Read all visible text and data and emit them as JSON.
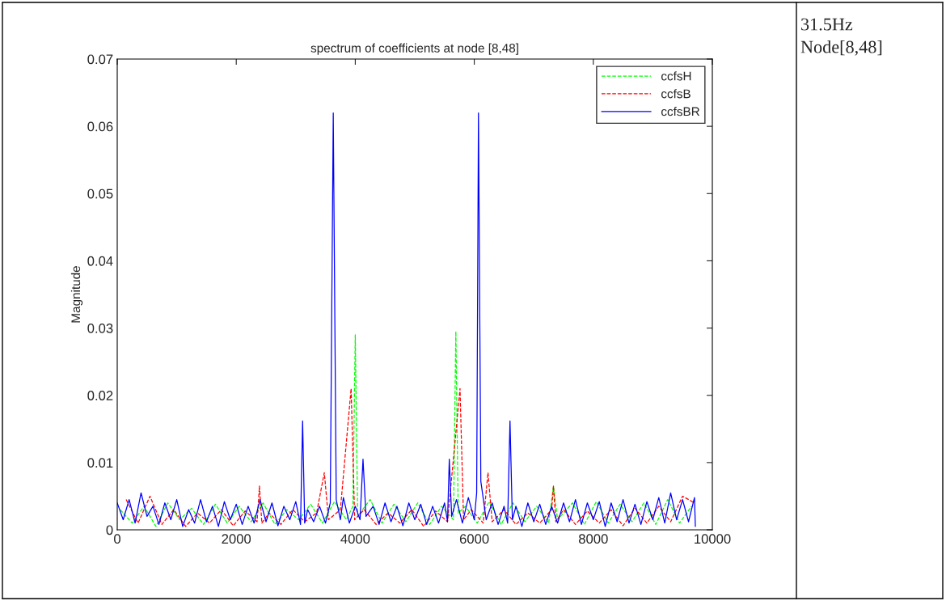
{
  "chart_data": {
    "type": "line",
    "title": "spectrum of coefficients at node [8,48]",
    "ylabel": "Magnitude",
    "xlim": [
      0,
      10000
    ],
    "xticks": [
      0,
      2000,
      4000,
      6000,
      8000,
      10000
    ],
    "ylim": [
      0,
      0.07
    ],
    "yticks": [
      0,
      0.01,
      0.02,
      0.03,
      0.04,
      0.05,
      0.06,
      0.07
    ],
    "grid": false,
    "legend": "top right",
    "annotations": [
      "31.5Hz",
      "Node[8,48]"
    ],
    "series": [
      {
        "name": "ccfsH",
        "color": "#00ff00",
        "line_style": "dashed",
        "x": [
          50,
          250,
          450,
          650,
          850,
          1050,
          1250,
          1450,
          1650,
          1850,
          2050,
          2250,
          2450,
          2650,
          2850,
          3050,
          3250,
          3450,
          3650,
          3850,
          3960,
          4000,
          4040,
          4250,
          4450,
          4650,
          4850,
          5050,
          5250,
          5450,
          5650,
          5690,
          5730,
          5850,
          6050,
          6250,
          6450,
          6650,
          6850,
          7050,
          7250,
          7330,
          7400,
          7650,
          7850,
          8050,
          8250,
          8450,
          8650,
          8850,
          9050,
          9250,
          9450,
          9650
        ],
        "values": [
          0.003,
          0.001,
          0.0035,
          0.0005,
          0.004,
          0.0015,
          0.0032,
          0.0008,
          0.0038,
          0.001,
          0.0035,
          0.0012,
          0.004,
          0.0008,
          0.003,
          0.0015,
          0.0038,
          0.001,
          0.0042,
          0.0015,
          0.0035,
          0.029,
          0.002,
          0.0045,
          0.001,
          0.0038,
          0.0012,
          0.004,
          0.0008,
          0.0035,
          0.0015,
          0.0295,
          0.0025,
          0.0035,
          0.001,
          0.0042,
          0.0008,
          0.004,
          0.0012,
          0.0035,
          0.001,
          0.0065,
          0.0015,
          0.004,
          0.0008,
          0.0042,
          0.001,
          0.0038,
          0.0012,
          0.004,
          0.0008,
          0.0045,
          0.001,
          0.0035
        ]
      },
      {
        "name": "ccfsB",
        "color": "#ff0000",
        "line_style": "dashed",
        "x": [
          150,
          350,
          550,
          750,
          950,
          1150,
          1350,
          1550,
          1750,
          1950,
          2150,
          2350,
          2390,
          2430,
          2550,
          2750,
          2950,
          3150,
          3350,
          3480,
          3550,
          3750,
          3930,
          3990,
          4150,
          4350,
          4550,
          4750,
          4950,
          5150,
          5350,
          5550,
          5760,
          5820,
          5950,
          6150,
          6230,
          6300,
          6500,
          6700,
          6900,
          7100,
          7300,
          7330,
          7370,
          7500,
          7700,
          7900,
          8100,
          8300,
          8500,
          8700,
          8900,
          9100,
          9300,
          9500,
          9700
        ],
        "values": [
          0.0045,
          0.001,
          0.005,
          0.0008,
          0.003,
          0.0005,
          0.0025,
          0.001,
          0.003,
          0.0006,
          0.0028,
          0.0012,
          0.0065,
          0.001,
          0.0025,
          0.0008,
          0.003,
          0.0012,
          0.0025,
          0.0085,
          0.0015,
          0.003,
          0.021,
          0.0015,
          0.003,
          0.0008,
          0.0025,
          0.001,
          0.003,
          0.0005,
          0.0028,
          0.0012,
          0.021,
          0.0015,
          0.003,
          0.001,
          0.0085,
          0.0012,
          0.003,
          0.0008,
          0.0025,
          0.001,
          0.003,
          0.0065,
          0.0012,
          0.003,
          0.0008,
          0.0028,
          0.001,
          0.003,
          0.0006,
          0.0032,
          0.001,
          0.0035,
          0.0012,
          0.005,
          0.004
        ]
      },
      {
        "name": "ccfsBR",
        "color": "#0000ff",
        "line_style": "solid",
        "x": [
          0,
          100,
          200,
          300,
          400,
          500,
          600,
          700,
          800,
          900,
          1000,
          1100,
          1200,
          1300,
          1400,
          1500,
          1600,
          1700,
          1800,
          1900,
          2000,
          2100,
          2200,
          2300,
          2400,
          2500,
          2600,
          2700,
          2800,
          2900,
          3000,
          3080,
          3115,
          3150,
          3200,
          3300,
          3400,
          3500,
          3580,
          3630,
          3680,
          3750,
          3800,
          3900,
          4000,
          4080,
          4130,
          4180,
          4300,
          4400,
          4500,
          4600,
          4700,
          4800,
          4900,
          5000,
          5100,
          5200,
          5300,
          5400,
          5500,
          5550,
          5580,
          5620,
          5700,
          5800,
          5900,
          6000,
          6040,
          6070,
          6110,
          6200,
          6300,
          6400,
          6500,
          6560,
          6600,
          6640,
          6700,
          6800,
          6900,
          7000,
          7100,
          7200,
          7300,
          7400,
          7500,
          7600,
          7700,
          7800,
          7900,
          8000,
          8100,
          8200,
          8300,
          8400,
          8500,
          8600,
          8700,
          8800,
          8900,
          9000,
          9100,
          9200,
          9300,
          9400,
          9500,
          9600,
          9700,
          9715
        ],
        "values": [
          0.004,
          0.0015,
          0.0045,
          0.001,
          0.0055,
          0.002,
          0.0035,
          0.0008,
          0.004,
          0.0015,
          0.0045,
          0.0005,
          0.003,
          0.001,
          0.0045,
          0.0012,
          0.0035,
          0.0005,
          0.0042,
          0.0015,
          0.0038,
          0.0008,
          0.0035,
          0.001,
          0.0045,
          0.0012,
          0.004,
          0.0006,
          0.0035,
          0.0015,
          0.0042,
          0.0008,
          0.0162,
          0.001,
          0.003,
          0.0012,
          0.0035,
          0.001,
          0.004,
          0.062,
          0.0045,
          0.0015,
          0.0048,
          0.001,
          0.0035,
          0.0015,
          0.0105,
          0.002,
          0.0035,
          0.0008,
          0.004,
          0.0012,
          0.0035,
          0.0006,
          0.004,
          0.0015,
          0.0038,
          0.0008,
          0.0035,
          0.001,
          0.004,
          0.0012,
          0.0105,
          0.002,
          0.0045,
          0.001,
          0.0048,
          0.0015,
          0.0055,
          0.062,
          0.0072,
          0.0015,
          0.004,
          0.0008,
          0.0035,
          0.001,
          0.0162,
          0.0015,
          0.0035,
          0.0005,
          0.004,
          0.0012,
          0.0038,
          0.0008,
          0.0035,
          0.001,
          0.004,
          0.0012,
          0.0045,
          0.0008,
          0.004,
          0.0015,
          0.0042,
          0.0005,
          0.004,
          0.0012,
          0.0045,
          0.001,
          0.0038,
          0.0008,
          0.0042,
          0.0015,
          0.0048,
          0.001,
          0.0055,
          0.0015,
          0.0045,
          0.0012,
          0.0048,
          0.0005
        ]
      }
    ]
  }
}
